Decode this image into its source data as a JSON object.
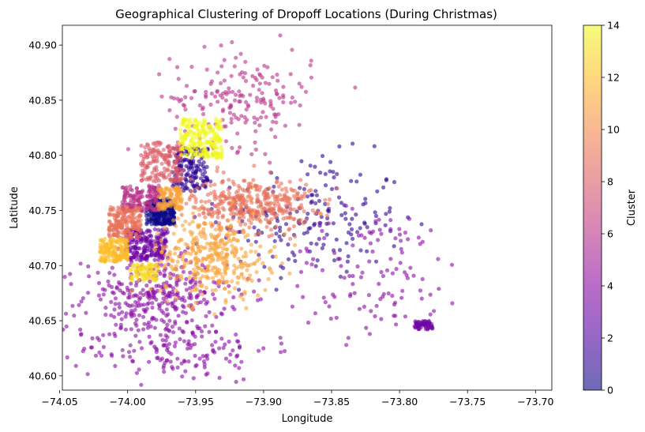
{
  "chart_data": {
    "type": "scatter",
    "title": "Geographical Clustering of Dropoff Locations (During Christmas)",
    "xlabel": "Longitude",
    "ylabel": "Latitude",
    "xlim": [
      -74.048,
      -73.688
    ],
    "ylim": [
      40.587,
      40.918
    ],
    "xticks": [
      -74.05,
      -74.0,
      -73.95,
      -73.9,
      -73.85,
      -73.8,
      -73.75,
      -73.7
    ],
    "xtick_labels": [
      "−74.05",
      "−74.00",
      "−73.95",
      "−73.90",
      "−73.85",
      "−73.80",
      "−73.75",
      "−73.70"
    ],
    "yticks": [
      40.6,
      40.65,
      40.7,
      40.75,
      40.8,
      40.85,
      40.9
    ],
    "ytick_labels": [
      "40.60",
      "40.65",
      "40.70",
      "40.75",
      "40.80",
      "40.85",
      "40.90"
    ],
    "grid": false,
    "colormap": "plasma",
    "point_alpha": 0.6,
    "colorbar": {
      "label": "Cluster",
      "range": [
        0,
        14
      ],
      "ticks": [
        0,
        2,
        4,
        6,
        8,
        10,
        12,
        14
      ],
      "tick_labels": [
        "0",
        "2",
        "4",
        "6",
        "8",
        "10",
        "12",
        "14"
      ]
    },
    "clusters": [
      {
        "cluster": 0,
        "center": [
          -73.976,
          40.749
        ],
        "spread": [
          0.008,
          0.009
        ],
        "count": 260,
        "dense": true
      },
      {
        "cluster": 1,
        "center": [
          -73.865,
          40.743
        ],
        "spread": [
          0.034,
          0.028
        ],
        "count": 190,
        "dense": false
      },
      {
        "cluster": 1,
        "center": [
          -73.954,
          40.787
        ],
        "spread": [
          0.01,
          0.015
        ],
        "count": 170,
        "dense": true
      },
      {
        "cluster": 3,
        "center": [
          -73.986,
          40.719
        ],
        "spread": [
          0.012,
          0.011
        ],
        "count": 220,
        "dense": true
      },
      {
        "cluster": 3,
        "center": [
          -73.782,
          40.646
        ],
        "spread": [
          0.005,
          0.003
        ],
        "count": 60,
        "dense": true
      },
      {
        "cluster": 4,
        "center": [
          -73.98,
          40.672
        ],
        "spread": [
          0.026,
          0.018
        ],
        "count": 320,
        "dense": false
      },
      {
        "cluster": 4,
        "center": [
          -73.965,
          40.625
        ],
        "spread": [
          0.035,
          0.015
        ],
        "count": 160,
        "dense": false
      },
      {
        "cluster": 4,
        "center": [
          -73.818,
          40.692
        ],
        "spread": [
          0.035,
          0.03
        ],
        "count": 120,
        "dense": false
      },
      {
        "cluster": 6,
        "center": [
          -73.916,
          40.852
        ],
        "spread": [
          0.026,
          0.022
        ],
        "count": 190,
        "dense": false
      },
      {
        "cluster": 6,
        "center": [
          -73.99,
          40.761
        ],
        "spread": [
          0.011,
          0.009
        ],
        "count": 170,
        "dense": true
      },
      {
        "cluster": 8,
        "center": [
          -73.975,
          40.794
        ],
        "spread": [
          0.012,
          0.014
        ],
        "count": 170,
        "dense": true
      },
      {
        "cluster": 9,
        "center": [
          -74.002,
          40.739
        ],
        "spread": [
          0.009,
          0.011
        ],
        "count": 190,
        "dense": true
      },
      {
        "cluster": 9,
        "center": [
          -73.909,
          40.756
        ],
        "spread": [
          0.022,
          0.012
        ],
        "count": 380,
        "dense": false
      },
      {
        "cluster": 11,
        "center": [
          -73.938,
          40.708
        ],
        "spread": [
          0.022,
          0.018
        ],
        "count": 370,
        "dense": false
      },
      {
        "cluster": 11,
        "center": [
          -73.969,
          40.761
        ],
        "spread": [
          0.007,
          0.008
        ],
        "count": 120,
        "dense": true
      },
      {
        "cluster": 12,
        "center": [
          -74.01,
          40.714
        ],
        "spread": [
          0.008,
          0.008
        ],
        "count": 170,
        "dense": true
      },
      {
        "cluster": 13,
        "center": [
          -73.988,
          40.694
        ],
        "spread": [
          0.008,
          0.006
        ],
        "count": 80,
        "dense": true
      },
      {
        "cluster": 14,
        "center": [
          -73.946,
          40.815
        ],
        "spread": [
          0.012,
          0.014
        ],
        "count": 220,
        "dense": true
      }
    ]
  }
}
